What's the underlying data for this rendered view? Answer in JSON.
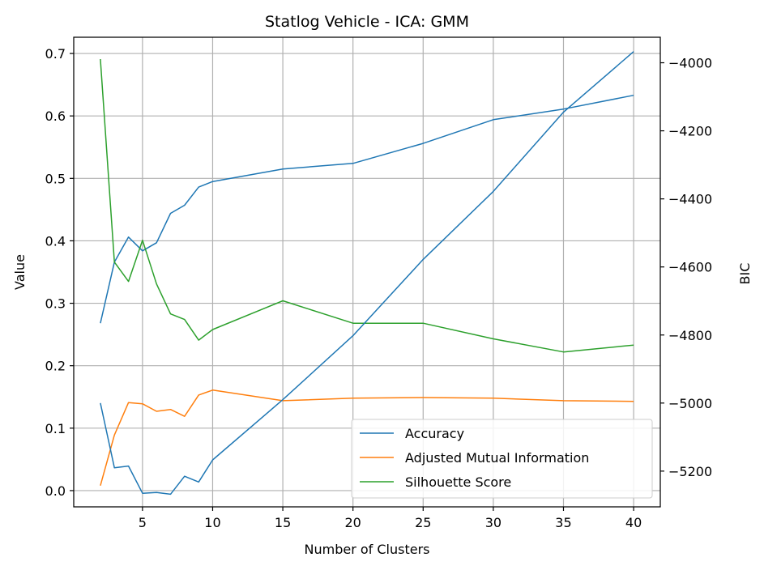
{
  "chart_data": {
    "type": "line",
    "title": "Statlog Vehicle - ICA: GMM",
    "xlabel": "Number of Clusters",
    "ylabel": "Value",
    "y2label": "BIC",
    "xlim": [
      0.1,
      41.9
    ],
    "ylim": [
      -0.026,
      0.726
    ],
    "y2lim": [
      -5305,
      -3925
    ],
    "xticks": [
      5,
      10,
      15,
      20,
      25,
      30,
      35,
      40
    ],
    "yticks": [
      0.0,
      0.1,
      0.2,
      0.3,
      0.4,
      0.5,
      0.6,
      0.7
    ],
    "y2ticks": [
      -5200,
      -5000,
      -4800,
      -4600,
      -4400,
      -4200,
      -4000
    ],
    "grid": true,
    "legend_position": "lower-right",
    "x": [
      2,
      3,
      4,
      5,
      6,
      7,
      8,
      9,
      10,
      15,
      20,
      25,
      30,
      35,
      40
    ],
    "series": [
      {
        "name": "Accuracy",
        "axis": "left",
        "color": "#1f77b4",
        "values": [
          0.268,
          0.366,
          0.406,
          0.384,
          0.397,
          0.444,
          0.457,
          0.486,
          0.495,
          0.515,
          0.524,
          0.556,
          0.594,
          0.611,
          0.633
        ]
      },
      {
        "name": "Adjusted Mutual Information",
        "axis": "left",
        "color": "#ff7f0e",
        "values": [
          0.008,
          0.089,
          0.141,
          0.139,
          0.127,
          0.13,
          0.119,
          0.153,
          0.161,
          0.144,
          0.148,
          0.149,
          0.148,
          0.144,
          0.143
        ]
      },
      {
        "name": "Silhouette Score",
        "axis": "left",
        "color": "#2ca02c",
        "values": [
          0.691,
          0.366,
          0.335,
          0.401,
          0.331,
          0.283,
          0.274,
          0.241,
          0.258,
          0.304,
          0.268,
          0.268,
          0.243,
          0.222,
          0.233
        ]
      },
      {
        "name": "BIC",
        "axis": "right",
        "color": "#1f77b4",
        "values": [
          -5000,
          -5190,
          -5185,
          -5265,
          -5263,
          -5268,
          -5215,
          -5232,
          -5167,
          -4990,
          -4802,
          -4578,
          -4378,
          -4145,
          -3967
        ]
      }
    ]
  }
}
